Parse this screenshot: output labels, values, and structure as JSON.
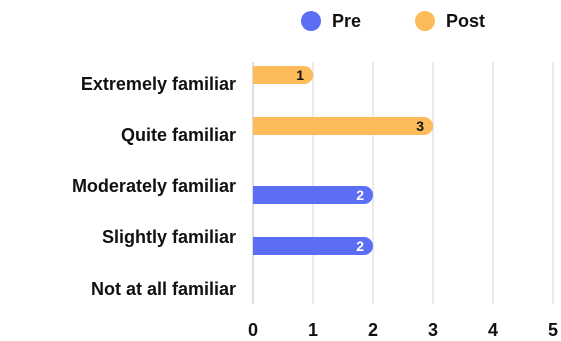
{
  "chart_data": {
    "type": "bar",
    "orientation": "horizontal",
    "categories": [
      "Extremely familiar",
      "Quite familiar",
      "Moderately familiar",
      "Slightly familiar",
      "Not at all familiar"
    ],
    "series": [
      {
        "name": "Pre",
        "values": [
          0,
          0,
          2,
          2,
          0
        ],
        "color": "#5b6ef5"
      },
      {
        "name": "Post",
        "values": [
          1,
          3,
          0,
          0,
          0
        ],
        "color": "#fdbb5a"
      }
    ],
    "xlim": [
      0,
      5
    ],
    "xticks": [
      "0",
      "1",
      "2",
      "3",
      "4",
      "5"
    ],
    "title": "",
    "xlabel": "",
    "ylabel": "",
    "grid": true,
    "legend": "top-right",
    "data_labels": true
  }
}
